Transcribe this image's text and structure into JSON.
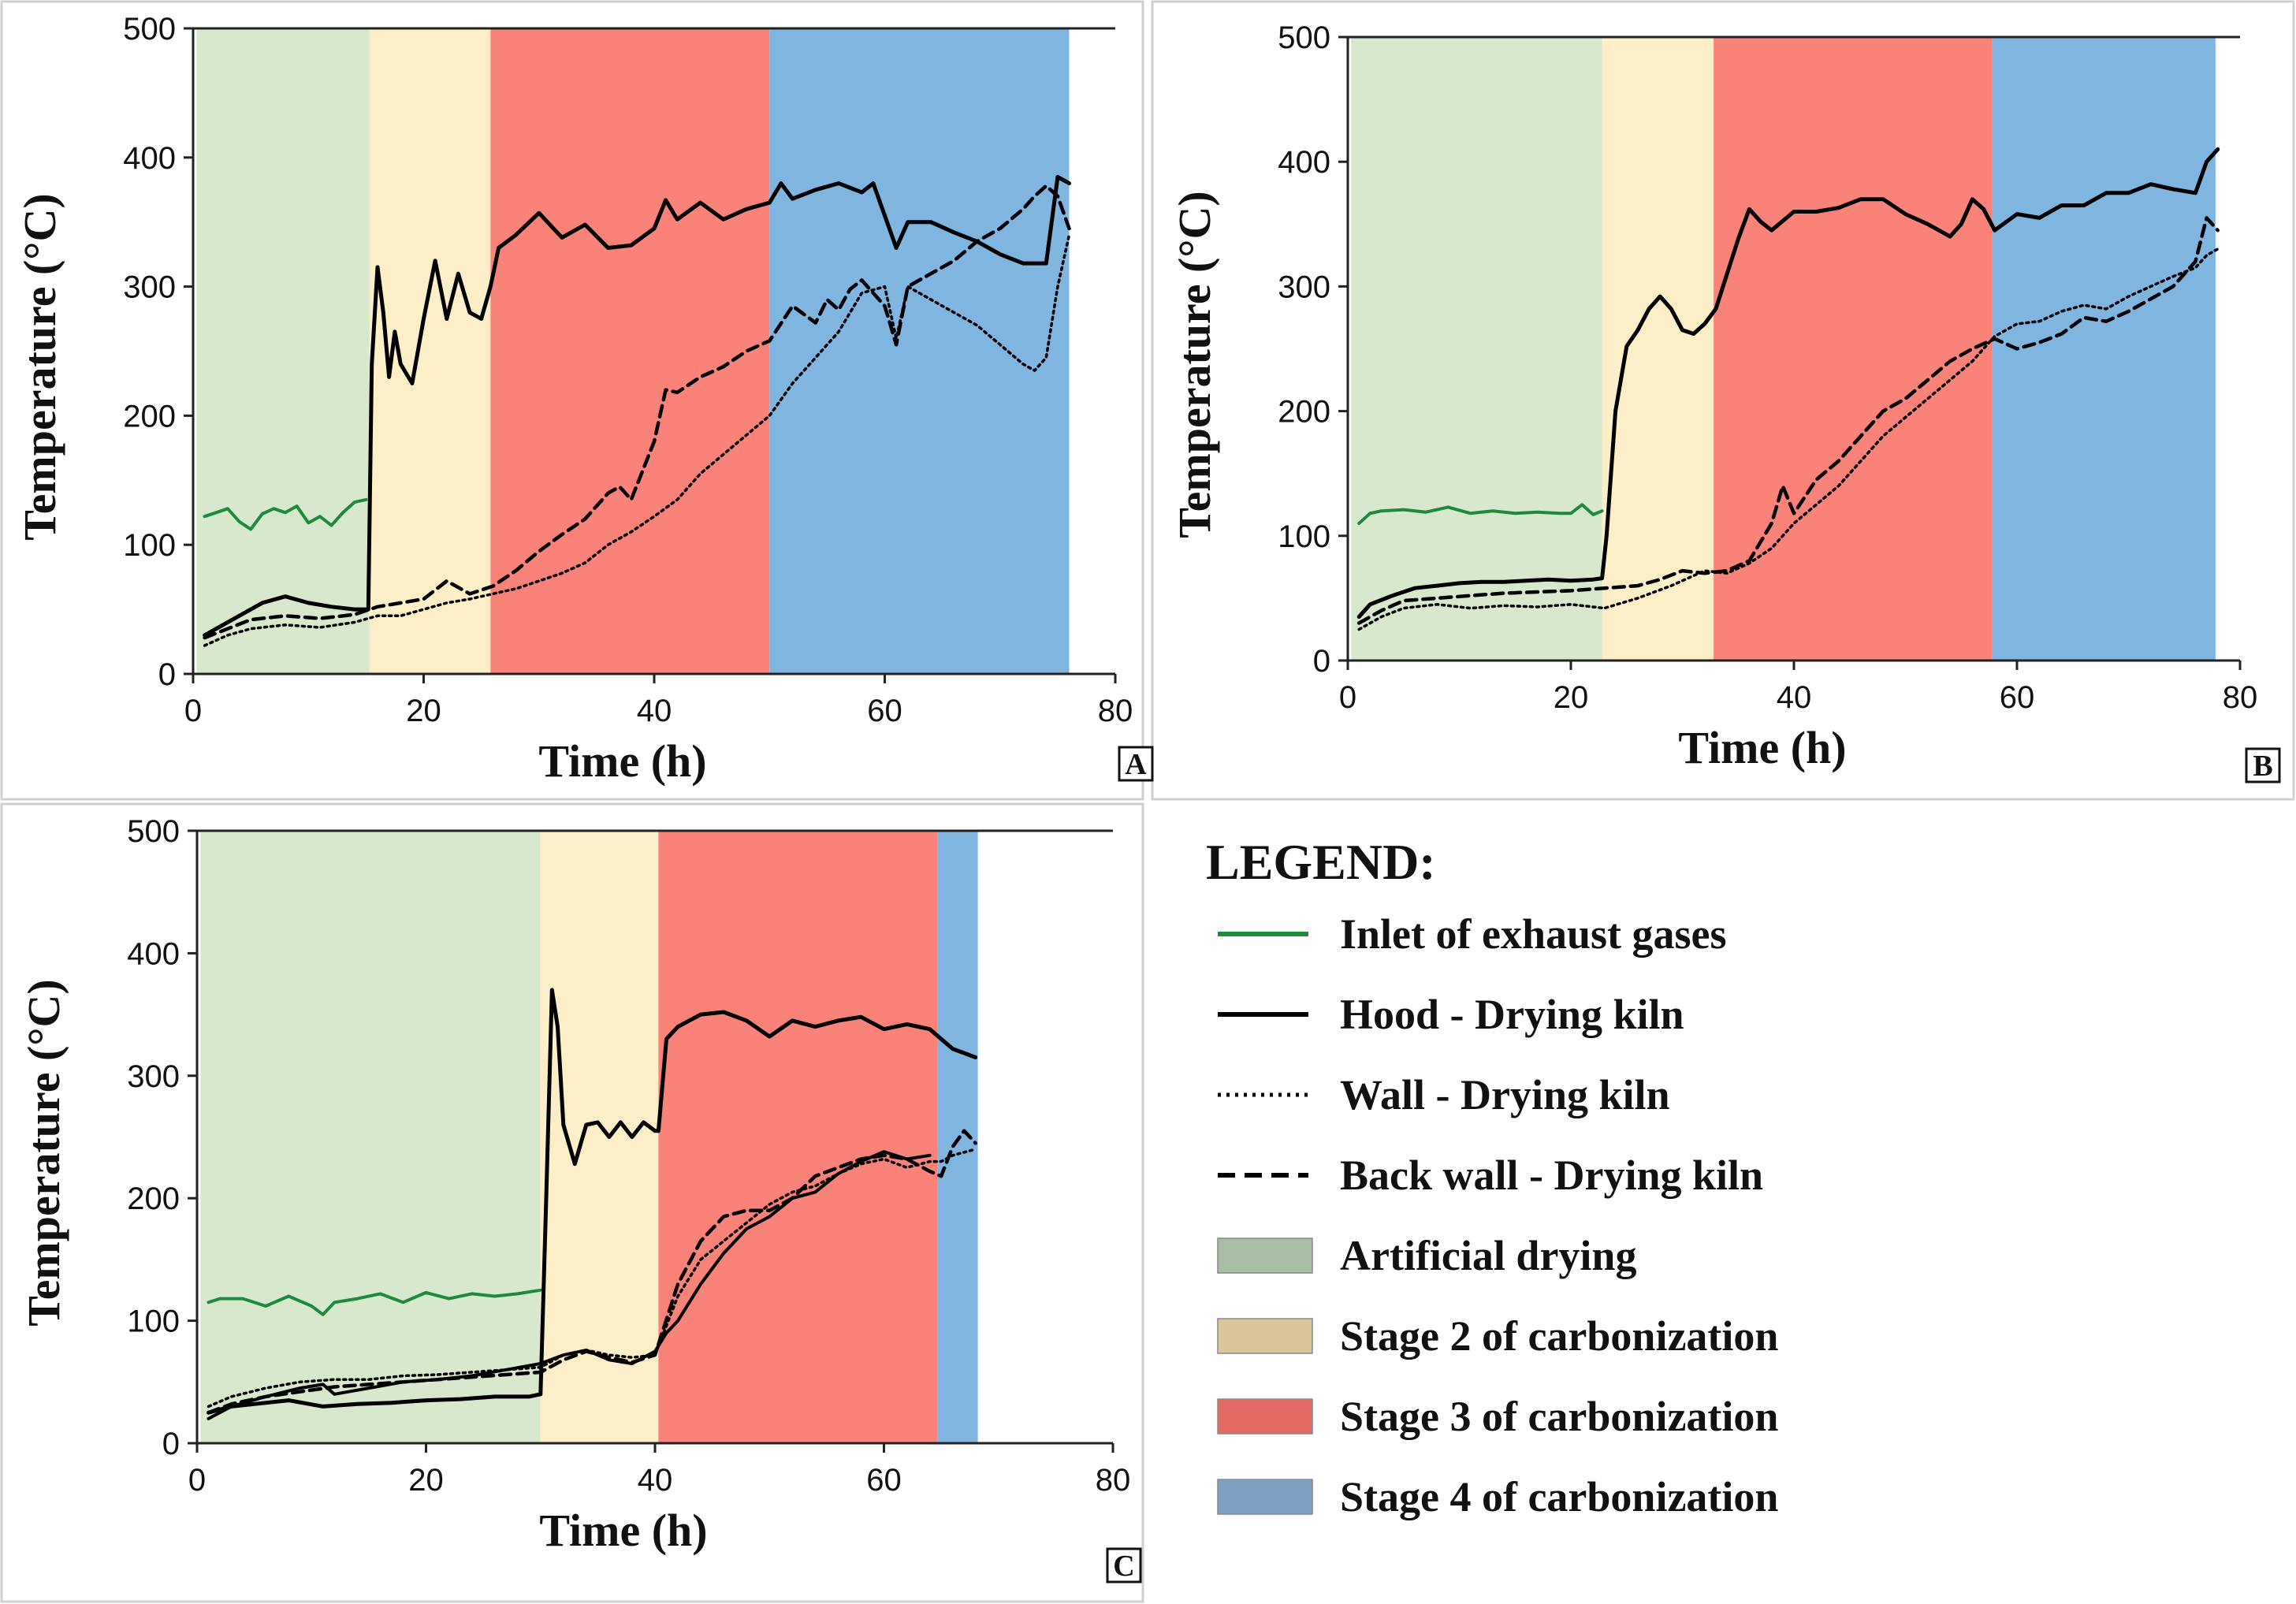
{
  "legend": {
    "title": "LEGEND:",
    "items": [
      {
        "label": "Inlet of exhaust gases",
        "kind": "line",
        "style": "solid",
        "color": "#1e8a3c"
      },
      {
        "label": "Hood - Drying kiln",
        "kind": "line",
        "style": "solid",
        "color": "#000000"
      },
      {
        "label": "Wall - Drying kiln",
        "kind": "line",
        "style": "dotted",
        "color": "#000000"
      },
      {
        "label": "Back wall - Drying kiln",
        "kind": "line",
        "style": "dashed",
        "color": "#000000"
      },
      {
        "label": "Artificial drying",
        "kind": "patch",
        "color": "#a9bfa5"
      },
      {
        "label": "Stage 2 of carbonization",
        "kind": "patch",
        "color": "#d9c79c"
      },
      {
        "label": "Stage 3 of carbonization",
        "kind": "patch",
        "color": "#e06a62"
      },
      {
        "label": "Stage 4 of carbonization",
        "kind": "patch",
        "color": "#7c9fc2"
      }
    ]
  },
  "colors": {
    "artificial_drying": "#d7e8cc",
    "stage2": "#fcefc8",
    "stage3": "#f98279",
    "stage4": "#80b5e0",
    "inlet": "#1e8a3c"
  },
  "chart_data": [
    {
      "type": "line",
      "panel": "A",
      "xlabel": "Time (h)",
      "ylabel": "Temperature (°C)",
      "xlim": [
        0,
        80
      ],
      "ylim": [
        0,
        500
      ],
      "xticks": [
        0,
        20,
        40,
        60,
        80
      ],
      "yticks": [
        0,
        100,
        200,
        300,
        400,
        500
      ],
      "stages": [
        {
          "stage": "artificial_drying",
          "from": 0.3,
          "to": 15.3
        },
        {
          "stage": "stage2",
          "from": 15.3,
          "to": 25.8
        },
        {
          "stage": "stage3",
          "from": 25.8,
          "to": 50
        },
        {
          "stage": "stage4",
          "from": 50,
          "to": 76
        }
      ],
      "series": [
        {
          "key": "inlet",
          "x": [
            1,
            2,
            3,
            4,
            5,
            6,
            7,
            8,
            9,
            10,
            11,
            12,
            13,
            14,
            15
          ],
          "y": [
            122,
            125,
            128,
            118,
            112,
            124,
            128,
            125,
            130,
            117,
            122,
            115,
            125,
            133,
            135
          ]
        },
        {
          "key": "hood",
          "x": [
            1,
            2,
            4,
            6,
            8,
            10,
            12,
            14,
            15.2,
            15.5,
            16,
            16.5,
            17,
            17.5,
            18,
            19,
            20,
            21,
            22,
            23,
            24,
            25,
            25.8,
            26.5,
            28,
            30,
            32,
            34,
            36,
            38,
            40,
            41,
            42,
            44,
            46,
            48,
            50,
            51,
            52,
            54,
            56,
            58,
            59,
            60,
            61,
            62,
            64,
            66,
            68,
            70,
            72,
            74,
            75,
            76
          ],
          "y": [
            30,
            35,
            45,
            55,
            60,
            55,
            52,
            50,
            50,
            240,
            315,
            280,
            230,
            265,
            240,
            225,
            275,
            320,
            275,
            310,
            280,
            275,
            300,
            330,
            340,
            357,
            338,
            348,
            330,
            332,
            345,
            367,
            352,
            365,
            352,
            360,
            365,
            380,
            368,
            375,
            380,
            373,
            380,
            355,
            330,
            350,
            350,
            342,
            335,
            325,
            318,
            318,
            385,
            380
          ]
        },
        {
          "key": "wall",
          "x": [
            1,
            3,
            5,
            8,
            11,
            14,
            16,
            18,
            20,
            22,
            24,
            26,
            28,
            30,
            32,
            34,
            36,
            38,
            40,
            42,
            44,
            46,
            48,
            50,
            52,
            54,
            56,
            58,
            60,
            61,
            62,
            64,
            66,
            68,
            70,
            72,
            73,
            74,
            75,
            76
          ],
          "y": [
            22,
            30,
            35,
            38,
            36,
            40,
            45,
            45,
            50,
            55,
            58,
            62,
            66,
            72,
            78,
            86,
            100,
            110,
            122,
            135,
            155,
            170,
            185,
            200,
            225,
            245,
            265,
            295,
            300,
            260,
            300,
            290,
            280,
            270,
            255,
            240,
            235,
            245,
            300,
            340
          ]
        },
        {
          "key": "backwall",
          "x": [
            1,
            3,
            5,
            8,
            11,
            14,
            16,
            18,
            20,
            22,
            24,
            26,
            28,
            30,
            32,
            34,
            36,
            37,
            38,
            40,
            41,
            42,
            44,
            46,
            48,
            50,
            52,
            54,
            55,
            56,
            57,
            58,
            59,
            60,
            61,
            62,
            64,
            66,
            68,
            70,
            72,
            73,
            74,
            75,
            76
          ],
          "y": [
            28,
            35,
            42,
            45,
            43,
            46,
            52,
            55,
            58,
            72,
            62,
            68,
            80,
            95,
            108,
            120,
            140,
            145,
            135,
            180,
            220,
            218,
            230,
            238,
            250,
            258,
            285,
            272,
            290,
            282,
            298,
            305,
            295,
            285,
            255,
            300,
            310,
            320,
            335,
            345,
            360,
            370,
            378,
            370,
            345
          ]
        }
      ]
    },
    {
      "type": "line",
      "panel": "B",
      "xlabel": "Time (h)",
      "ylabel": "Temperature (°C)",
      "xlim": [
        0,
        80
      ],
      "ylim": [
        0,
        500
      ],
      "xticks": [
        0,
        20,
        40,
        60,
        80
      ],
      "yticks": [
        0,
        100,
        200,
        300,
        400,
        500
      ],
      "stages": [
        {
          "stage": "artificial_drying",
          "from": 0.3,
          "to": 22.8
        },
        {
          "stage": "stage2",
          "from": 22.8,
          "to": 32.8
        },
        {
          "stage": "stage3",
          "from": 32.8,
          "to": 57.8
        },
        {
          "stage": "stage4",
          "from": 57.8,
          "to": 77.8
        }
      ],
      "series": [
        {
          "key": "inlet",
          "x": [
            1,
            2,
            3,
            5,
            7,
            9,
            11,
            13,
            15,
            17,
            19,
            20,
            21,
            22,
            22.8
          ],
          "y": [
            110,
            118,
            120,
            121,
            119,
            123,
            118,
            120,
            118,
            119,
            118,
            118,
            125,
            117,
            120
          ]
        },
        {
          "key": "hood",
          "x": [
            1,
            2,
            4,
            6,
            8,
            10,
            12,
            14,
            16,
            18,
            20,
            22,
            22.8,
            23.2,
            24,
            25,
            26,
            27,
            28,
            29,
            30,
            31,
            32,
            33,
            34,
            35,
            36,
            37,
            38,
            40,
            42,
            44,
            46,
            48,
            50,
            52,
            54,
            55,
            56,
            57,
            58,
            60,
            62,
            64,
            66,
            68,
            70,
            72,
            74,
            76,
            77,
            78
          ],
          "y": [
            35,
            45,
            52,
            58,
            60,
            62,
            63,
            63,
            64,
            65,
            64,
            65,
            66,
            100,
            200,
            252,
            265,
            282,
            292,
            282,
            265,
            262,
            270,
            282,
            310,
            338,
            362,
            352,
            345,
            360,
            360,
            363,
            370,
            370,
            358,
            350,
            340,
            350,
            370,
            362,
            345,
            358,
            355,
            365,
            365,
            375,
            375,
            382,
            378,
            375,
            400,
            410
          ]
        },
        {
          "key": "wall",
          "x": [
            1,
            3,
            5,
            8,
            11,
            14,
            17,
            20,
            23,
            26,
            29,
            32,
            34,
            36,
            38,
            40,
            42,
            44,
            46,
            48,
            50,
            52,
            54,
            56,
            58,
            60,
            62,
            64,
            66,
            68,
            70,
            72,
            74,
            76,
            77,
            78
          ],
          "y": [
            25,
            35,
            42,
            45,
            42,
            44,
            43,
            45,
            42,
            50,
            60,
            72,
            70,
            78,
            90,
            110,
            125,
            140,
            160,
            180,
            195,
            210,
            225,
            240,
            260,
            270,
            272,
            280,
            285,
            282,
            292,
            300,
            308,
            315,
            325,
            330
          ]
        },
        {
          "key": "backwall",
          "x": [
            1,
            3,
            5,
            8,
            11,
            14,
            17,
            20,
            23,
            26,
            28,
            30,
            32,
            34,
            36,
            38,
            39,
            40,
            42,
            44,
            46,
            48,
            50,
            52,
            54,
            56,
            58,
            60,
            62,
            64,
            66,
            68,
            70,
            72,
            74,
            76,
            77,
            78
          ],
          "y": [
            30,
            40,
            48,
            50,
            52,
            54,
            55,
            56,
            58,
            60,
            65,
            72,
            70,
            72,
            80,
            110,
            140,
            118,
            145,
            160,
            180,
            200,
            210,
            225,
            240,
            250,
            258,
            250,
            255,
            262,
            275,
            272,
            280,
            290,
            300,
            320,
            355,
            345
          ]
        }
      ]
    },
    {
      "type": "line",
      "panel": "C",
      "xlabel": "Time (h)",
      "ylabel": "Temperature (°C)",
      "xlim": [
        0,
        80
      ],
      "ylim": [
        0,
        500
      ],
      "xticks": [
        0,
        20,
        40,
        60,
        80
      ],
      "yticks": [
        0,
        100,
        200,
        300,
        400,
        500
      ],
      "stages": [
        {
          "stage": "artificial_drying",
          "from": 0.3,
          "to": 30
        },
        {
          "stage": "stage2",
          "from": 30,
          "to": 40.3
        },
        {
          "stage": "stage3",
          "from": 40.3,
          "to": 64.7
        },
        {
          "stage": "stage4",
          "from": 64.7,
          "to": 68.2
        }
      ],
      "series": [
        {
          "key": "inlet",
          "x": [
            1,
            2,
            4,
            6,
            8,
            10,
            11,
            12,
            14,
            16,
            18,
            20,
            22,
            24,
            26,
            28,
            30
          ],
          "y": [
            115,
            118,
            118,
            112,
            120,
            112,
            105,
            115,
            118,
            122,
            115,
            123,
            118,
            122,
            120,
            122,
            125
          ]
        },
        {
          "key": "hood",
          "x": [
            1,
            3,
            5,
            8,
            11,
            14,
            17,
            20,
            23,
            26,
            29,
            30,
            30.5,
            31,
            31.5,
            32,
            33,
            34,
            35,
            36,
            37,
            38,
            39,
            40,
            40.3,
            41,
            42,
            44,
            46,
            48,
            50,
            52,
            54,
            56,
            58,
            60,
            62,
            64,
            65,
            66,
            68
          ],
          "y": [
            25,
            30,
            32,
            35,
            30,
            32,
            33,
            35,
            36,
            38,
            38,
            40,
            200,
            370,
            340,
            260,
            228,
            260,
            262,
            250,
            262,
            250,
            262,
            255,
            255,
            330,
            340,
            350,
            352,
            345,
            332,
            345,
            340,
            345,
            348,
            338,
            342,
            338,
            330,
            322,
            315
          ]
        },
        {
          "key": "wall",
          "x": [
            1,
            3,
            6,
            9,
            12,
            15,
            18,
            21,
            24,
            27,
            30,
            32,
            34,
            36,
            38,
            40,
            42,
            44,
            46,
            48,
            50,
            52,
            54,
            56,
            58,
            60,
            62,
            64,
            65,
            66,
            68
          ],
          "y": [
            30,
            38,
            45,
            50,
            52,
            52,
            55,
            56,
            58,
            60,
            62,
            72,
            76,
            72,
            70,
            72,
            120,
            150,
            165,
            180,
            195,
            205,
            210,
            220,
            228,
            232,
            225,
            230,
            230,
            235,
            240
          ]
        },
        {
          "key": "backwall",
          "x": [
            1,
            3,
            6,
            9,
            12,
            15,
            18,
            21,
            24,
            27,
            30,
            32,
            34,
            36,
            38,
            40,
            42,
            44,
            46,
            48,
            50,
            52,
            54,
            56,
            58,
            60,
            62,
            64,
            65,
            66,
            67,
            68
          ],
          "y": [
            25,
            32,
            38,
            42,
            46,
            48,
            50,
            52,
            54,
            56,
            58,
            68,
            75,
            70,
            66,
            72,
            130,
            165,
            185,
            190,
            190,
            200,
            218,
            225,
            232,
            235,
            232,
            222,
            218,
            242,
            255,
            245
          ]
        },
        {
          "key": "hood2",
          "x": [
            1,
            3,
            6,
            9,
            11,
            12,
            15,
            18,
            21,
            24,
            27,
            30,
            32,
            34,
            36,
            38,
            40,
            41,
            42,
            44,
            46,
            48,
            50,
            52,
            54,
            56,
            58,
            60,
            62,
            64
          ],
          "y": [
            20,
            30,
            38,
            45,
            48,
            40,
            45,
            50,
            52,
            55,
            60,
            65,
            72,
            76,
            68,
            65,
            75,
            90,
            100,
            130,
            155,
            175,
            185,
            200,
            205,
            220,
            230,
            238,
            232,
            235
          ]
        }
      ]
    }
  ]
}
